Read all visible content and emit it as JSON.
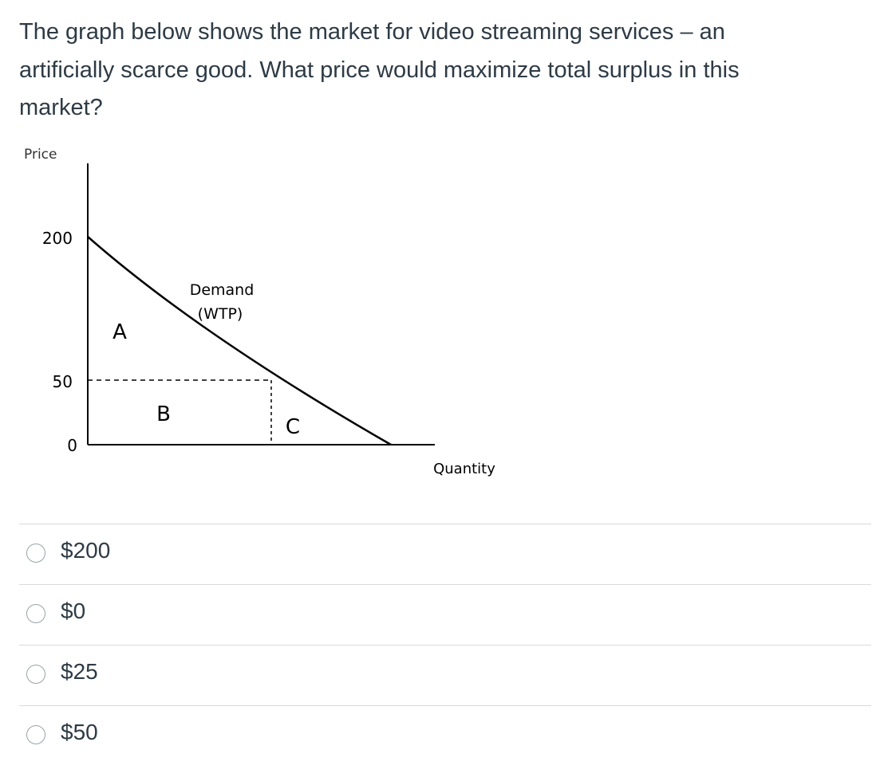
{
  "question": {
    "lines": [
      "The graph below shows the market for video streaming services – an",
      "artificially scarce good. What price would maximize total surplus in this",
      "market?"
    ]
  },
  "graph": {
    "y_axis_label": "Price",
    "x_axis_label": "Quantity",
    "tick_200": "200",
    "tick_50": "50",
    "tick_0": "0",
    "demand_label": "Demand",
    "demand_sublabel": "(WTP)",
    "area_a": "A",
    "area_b": "B",
    "area_c": "C"
  },
  "options": [
    "$200",
    "$0",
    "$25",
    "$50"
  ]
}
